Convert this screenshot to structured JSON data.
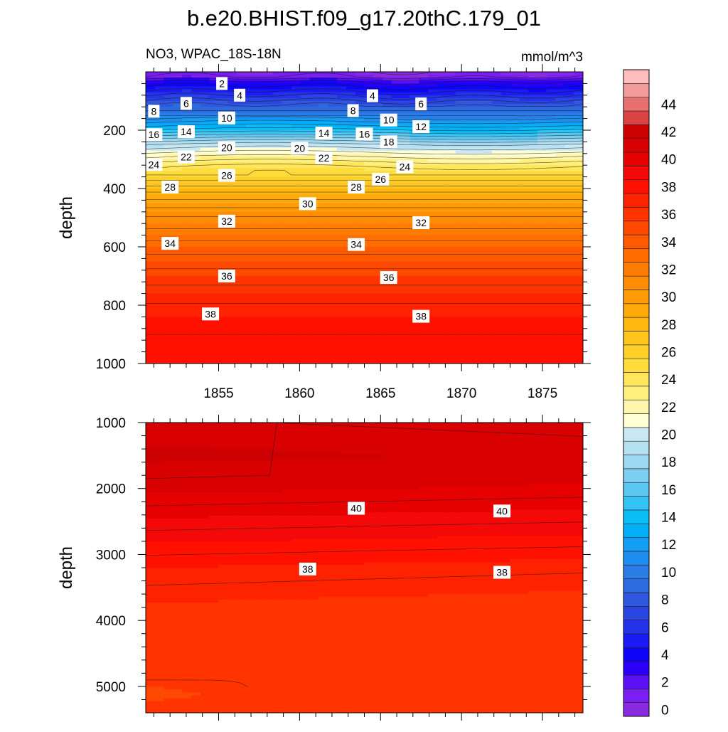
{
  "chart_data": {
    "type": "contour",
    "title": "b.e20.BHIST.f09_g17.20thC.179_01",
    "variable_label": "NO3, WPAC_18S-18N",
    "units": "mmol/m^3",
    "x": {
      "range": [
        1850.5,
        1877.5
      ],
      "ticks": [
        1855,
        1860,
        1865,
        1870,
        1875
      ],
      "tick_labels": [
        "1855",
        "1860",
        "1865",
        "1870",
        "1875"
      ]
    },
    "top_panel": {
      "ylabel": "depth",
      "ylim": [
        0,
        1000
      ],
      "yticks": [
        200,
        400,
        600,
        800,
        1000
      ],
      "ytick_labels": [
        "200",
        "400",
        "600",
        "800",
        "1000"
      ],
      "contour_labels": [
        {
          "text": "2",
          "x": 1855.2,
          "depth": 40
        },
        {
          "text": "4",
          "x": 1856.3,
          "depth": 80
        },
        {
          "text": "4",
          "x": 1864.5,
          "depth": 82
        },
        {
          "text": "6",
          "x": 1853.0,
          "depth": 108
        },
        {
          "text": "6",
          "x": 1867.5,
          "depth": 110
        },
        {
          "text": "8",
          "x": 1851.0,
          "depth": 135
        },
        {
          "text": "8",
          "x": 1863.3,
          "depth": 133
        },
        {
          "text": "10",
          "x": 1855.5,
          "depth": 158
        },
        {
          "text": "10",
          "x": 1865.5,
          "depth": 165
        },
        {
          "text": "12",
          "x": 1867.5,
          "depth": 188
        },
        {
          "text": "14",
          "x": 1853.0,
          "depth": 205
        },
        {
          "text": "14",
          "x": 1861.5,
          "depth": 210
        },
        {
          "text": "16",
          "x": 1851.0,
          "depth": 215
        },
        {
          "text": "16",
          "x": 1864.0,
          "depth": 213
        },
        {
          "text": "18",
          "x": 1865.5,
          "depth": 240
        },
        {
          "text": "20",
          "x": 1855.5,
          "depth": 260
        },
        {
          "text": "20",
          "x": 1860.0,
          "depth": 262
        },
        {
          "text": "22",
          "x": 1853.0,
          "depth": 292
        },
        {
          "text": "22",
          "x": 1861.5,
          "depth": 295
        },
        {
          "text": "24",
          "x": 1851.0,
          "depth": 318
        },
        {
          "text": "24",
          "x": 1866.5,
          "depth": 325
        },
        {
          "text": "26",
          "x": 1855.5,
          "depth": 355
        },
        {
          "text": "26",
          "x": 1865.0,
          "depth": 368
        },
        {
          "text": "28",
          "x": 1852.0,
          "depth": 395
        },
        {
          "text": "28",
          "x": 1863.5,
          "depth": 395
        },
        {
          "text": "30",
          "x": 1860.5,
          "depth": 452
        },
        {
          "text": "32",
          "x": 1855.5,
          "depth": 512
        },
        {
          "text": "32",
          "x": 1867.5,
          "depth": 517
        },
        {
          "text": "34",
          "x": 1852.0,
          "depth": 588
        },
        {
          "text": "34",
          "x": 1863.5,
          "depth": 592
        },
        {
          "text": "36",
          "x": 1855.5,
          "depth": 700
        },
        {
          "text": "36",
          "x": 1865.5,
          "depth": 705
        },
        {
          "text": "38",
          "x": 1854.5,
          "depth": 830
        },
        {
          "text": "38",
          "x": 1867.5,
          "depth": 838
        }
      ]
    },
    "bottom_panel": {
      "ylabel": "depth",
      "ylim": [
        1000,
        5400
      ],
      "yticks": [
        1000,
        2000,
        3000,
        4000,
        5000
      ],
      "ytick_labels": [
        "1000",
        "2000",
        "3000",
        "4000",
        "5000"
      ],
      "contour_labels": [
        {
          "text": "40",
          "x": 1863.5,
          "depth": 2300
        },
        {
          "text": "40",
          "x": 1872.5,
          "depth": 2340
        },
        {
          "text": "38",
          "x": 1860.5,
          "depth": 3220
        },
        {
          "text": "38",
          "x": 1872.5,
          "depth": 3270
        }
      ]
    },
    "colorbar": {
      "levels": [
        0,
        2,
        4,
        6,
        8,
        10,
        12,
        14,
        16,
        18,
        20,
        22,
        24,
        26,
        28,
        30,
        32,
        34,
        36,
        38,
        40,
        42,
        44
      ],
      "tick_labels": [
        "0",
        "2",
        "4",
        "6",
        "8",
        "10",
        "12",
        "14",
        "16",
        "18",
        "20",
        "22",
        "24",
        "26",
        "28",
        "30",
        "32",
        "34",
        "36",
        "38",
        "40",
        "42",
        "44"
      ],
      "colors": [
        "#8a2be2",
        "#7a1ff0",
        "#5a12f5",
        "#2a00fb",
        "#0f05f8",
        "#1a1af5",
        "#2432ea",
        "#2a45e0",
        "#3058de",
        "#2c6ae0",
        "#2a7ce6",
        "#1e8ef0",
        "#129ff5",
        "#00b0f8",
        "#0abdf7",
        "#33c4f5",
        "#5ac8f2",
        "#7ccff0",
        "#9ed8f0",
        "#b4e0f2",
        "#c8e8f4",
        "#ffffd4",
        "#fff6ae",
        "#fff07e",
        "#ffe65a",
        "#ffdc3c",
        "#ffd028",
        "#ffc41c",
        "#ffb812",
        "#ffaa0a",
        "#ff9c06",
        "#ff8c04",
        "#ff7c02",
        "#ff6c00",
        "#ff5a00",
        "#ff4800",
        "#ff3400",
        "#ff2200",
        "#ff1000",
        "#f50808",
        "#e60000",
        "#d80000",
        "#cc0000",
        "#dc4444",
        "#e87070",
        "#f49c9c",
        "#ffbcbc"
      ]
    }
  }
}
